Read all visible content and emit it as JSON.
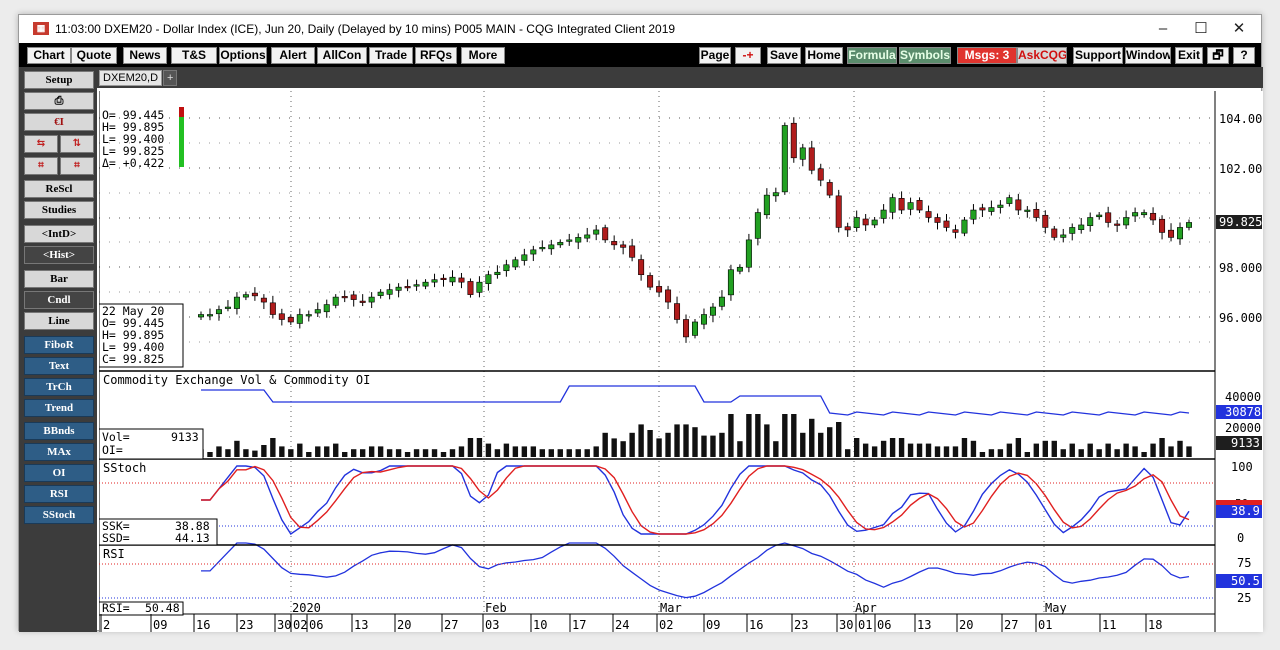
{
  "window": {
    "title": "11:03:00  DXEM20 - Dollar Index (ICE), Jun 20, Daily (Delayed by 10 mins)  P005 MAIN - CQG Integrated Client 2019",
    "minimize": "–",
    "maximize": "☐",
    "close": "✕"
  },
  "menu_left": [
    "Chart",
    "Quote",
    "News",
    "T&S",
    "Options",
    "Alert",
    "AllCon",
    "Trade",
    "RFQs",
    "More"
  ],
  "menu_right": {
    "page": "Page",
    "plusminus": "-+",
    "save": "Save",
    "home": "Home",
    "formula": "Formula",
    "symbols": "Symbols",
    "msgs": "Msgs: 3",
    "askcqg": "AskCQG",
    "support": "Support",
    "window": "Window",
    "exit": "Exit",
    "restore": "🗗",
    "help": "?"
  },
  "sidebar": {
    "setup": "Setup",
    "print_icon": "⎙",
    "ei": "€I",
    "icon_row1": [
      "⇆",
      "⇅"
    ],
    "icon_row2": [
      "⌗",
      "⌗"
    ],
    "rescl": "ReScl",
    "studies": "Studies",
    "intd": "<IntD>",
    "hist": "<Hist>",
    "bar": "Bar",
    "cndl": "Cndl",
    "line": "Line",
    "studies_list": [
      "FiboR",
      "Text",
      "TrCh",
      "Trend",
      "BBnds",
      "MAx",
      "OI",
      "RSI",
      "SStoch"
    ]
  },
  "tabs": {
    "active": "DXEM20,D",
    "add": "+"
  },
  "colors": {
    "up": "#22a022",
    "down": "#b01c1c",
    "blue": "#2233dd",
    "red": "#e02020",
    "price_badge": "#1e1e1e"
  },
  "ohlc_box": {
    "o": "O= 99.445",
    "h": "H= 99.895",
    "l": "L= 99.400",
    "lv": "L= 99.825",
    "d": "Δ= +0.422"
  },
  "cursor_box": {
    "date": "22 May 20",
    "o": "O=   99.445",
    "h": "H=   99.895",
    "l": "L=   99.400",
    "c": "C=   99.825"
  },
  "price_axis": {
    "ticks": [
      "104.000",
      "102.000",
      "98.000",
      "96.000"
    ],
    "last": "99.825"
  },
  "vol_panel": {
    "title": "Commodity Exchange Vol & Commodity OI",
    "vol": "Vol=",
    "vol_val": "9133",
    "oi": "OI=",
    "ticks": [
      "40000",
      "20000"
    ],
    "oi_last": "30878",
    "vol_last": "9133"
  },
  "stoch_panel": {
    "title": "SStoch",
    "ssk": "SSK=",
    "ssk_val": "38.88",
    "ssd": "SSD=",
    "ssd_val": "44.13",
    "ticks": [
      "100",
      "0"
    ],
    "last": "38.9",
    "hidden": "50"
  },
  "rsi_panel": {
    "title": "RSI",
    "rsi": "RSI=",
    "rsi_val": "50.48",
    "ticks": [
      "75",
      "25"
    ],
    "last": "50.5"
  },
  "date_axis": {
    "months": [
      "2020",
      "Feb",
      "Mar",
      "Apr",
      "May"
    ],
    "days": [
      "2",
      "09",
      "16",
      "23",
      "30",
      "02",
      "06",
      "13",
      "20",
      "27",
      "03",
      "10",
      "17",
      "24",
      "02",
      "09",
      "16",
      "23",
      "30",
      "01",
      "06",
      "13",
      "20",
      "27",
      "01",
      "11",
      "18"
    ]
  },
  "chart_data": {
    "type": "candlestick",
    "ylim": [
      94.6,
      104.3
    ],
    "close": [
      96.1,
      96.1,
      96.3,
      96.4,
      96.8,
      96.9,
      96.85,
      96.6,
      96.1,
      95.9,
      95.8,
      96.1,
      96.1,
      96.3,
      96.5,
      96.8,
      96.8,
      96.7,
      96.6,
      96.8,
      97.0,
      97.1,
      97.2,
      97.2,
      97.3,
      97.4,
      97.5,
      97.5,
      97.6,
      97.4,
      96.9,
      97.4,
      97.7,
      97.8,
      98.1,
      98.3,
      98.5,
      98.7,
      98.8,
      98.9,
      99.0,
      99.1,
      99.2,
      99.3,
      99.5,
      99.1,
      98.9,
      98.8,
      98.4,
      97.7,
      97.2,
      97.0,
      96.6,
      95.9,
      95.2,
      95.8,
      96.1,
      96.4,
      96.8,
      97.9,
      98.0,
      99.1,
      100.2,
      100.9,
      101.0,
      103.7,
      102.4,
      102.8,
      101.9,
      101.5,
      100.9,
      99.6,
      99.5,
      100.0,
      99.7,
      99.9,
      100.3,
      100.8,
      100.3,
      100.6,
      100.3,
      100.0,
      99.8,
      99.6,
      99.4,
      99.9,
      100.3,
      100.3,
      100.4,
      100.5,
      100.8,
      100.3,
      100.3,
      100.0,
      99.6,
      99.2,
      99.3,
      99.6,
      99.7,
      100.0,
      100.1,
      99.8,
      99.7,
      100.0,
      100.2,
      100.2,
      99.9,
      99.4,
      99.2,
      99.6,
      99.8
    ]
  }
}
